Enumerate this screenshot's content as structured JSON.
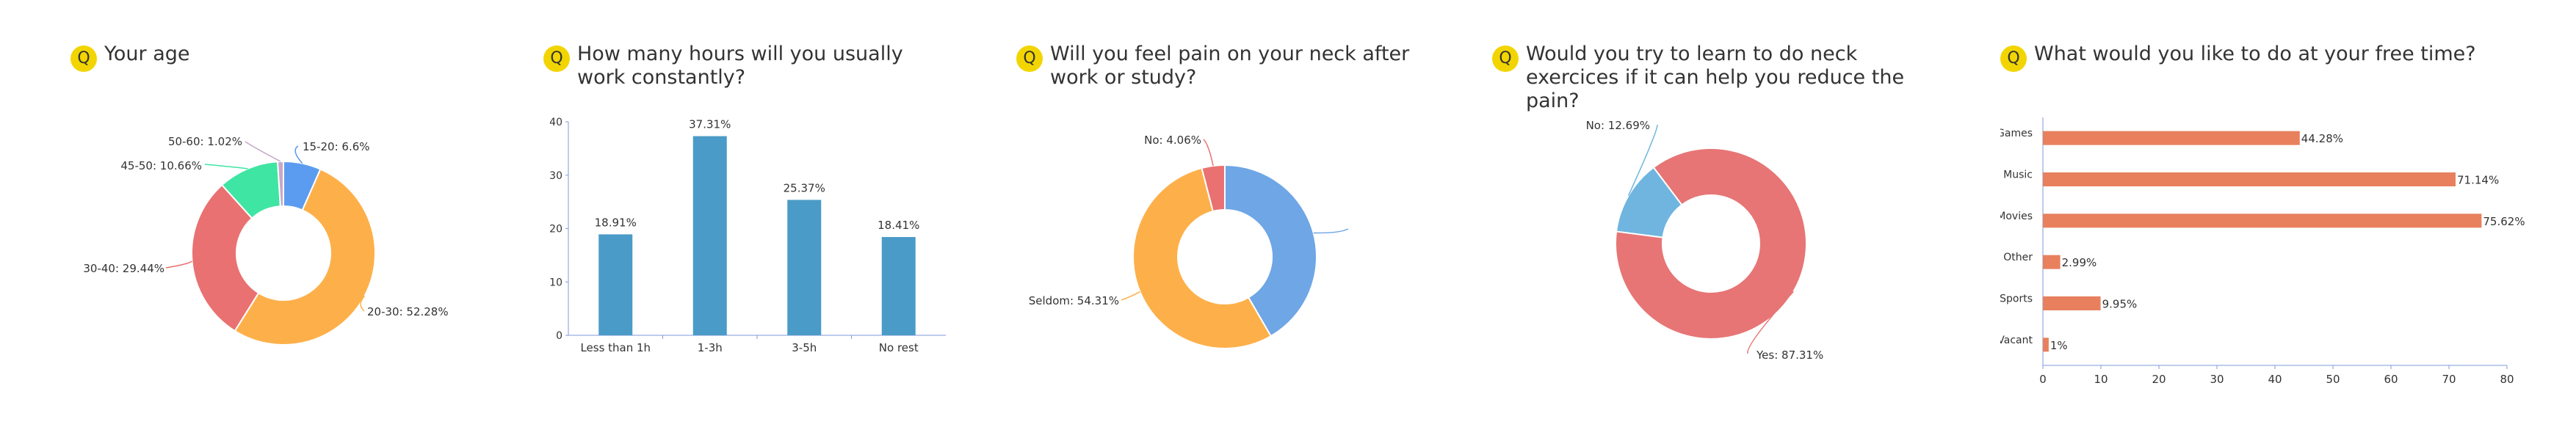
{
  "icon_letter": "Q",
  "colors": {
    "icon": "#f2d500",
    "bar_blue": "#4a9bc7",
    "bar_orange": "#e8805e",
    "axis": "#7f9ad8",
    "text": "#333333"
  },
  "chart_data": [
    {
      "type": "pie",
      "title": "Your age",
      "slices": [
        {
          "label": "15-20: 6.6%",
          "value": 6.6,
          "color": "#5b9cf0"
        },
        {
          "label": "20-30: 52.28%",
          "value": 52.28,
          "color": "#fdb04a"
        },
        {
          "label": "30-40: 29.44%",
          "value": 29.44,
          "color": "#ea7171"
        },
        {
          "label": "45-50: 10.66%",
          "value": 10.66,
          "color": "#3ee5a3"
        },
        {
          "label": "50-60: 1.02%",
          "value": 1.02,
          "color": "#c8a7c8"
        }
      ]
    },
    {
      "type": "bar",
      "title": "How many hours will you usually work constantly?",
      "categories": [
        "Less than 1h",
        "1-3h",
        "3-5h",
        "No rest"
      ],
      "values": [
        18.91,
        37.31,
        25.37,
        18.41
      ],
      "value_labels": [
        "18.91%",
        "37.31%",
        "25.37%",
        "18.41%"
      ],
      "yticks": [
        "0",
        "10",
        "20",
        "30",
        "40"
      ],
      "ylim": [
        0,
        40
      ]
    },
    {
      "type": "pie",
      "title": "Will you feel pain on your neck after work or study?",
      "slices": [
        {
          "label": "",
          "value": 41.63,
          "color": "#6ea6e6"
        },
        {
          "label": "Seldom: 54.31%",
          "value": 54.31,
          "color": "#fdb04a"
        },
        {
          "label": "No: 4.06%",
          "value": 4.06,
          "color": "#ea7171"
        }
      ]
    },
    {
      "type": "pie",
      "title": "Would you try to learn to do neck exercices if it can help you reduce the pain?",
      "slices": [
        {
          "label": "Yes: 87.31%",
          "value": 87.31,
          "color": "#e77575"
        },
        {
          "label": "No: 12.69%",
          "value": 12.69,
          "color": "#6fb5df"
        }
      ]
    },
    {
      "type": "bar",
      "orientation": "horizontal",
      "title": "What would you like to do at your free time?",
      "categories": [
        "Games",
        "Music",
        "Books / Movies",
        "Other",
        "Sports",
        "Vacant"
      ],
      "values": [
        44.28,
        71.14,
        75.62,
        2.99,
        9.95,
        1
      ],
      "value_labels": [
        "44.28%",
        "71.14%",
        "75.62%",
        "2.99%",
        "9.95%",
        "1%"
      ],
      "xticks": [
        "0",
        "10",
        "20",
        "30",
        "40",
        "50",
        "60",
        "70",
        "80"
      ],
      "xlim": [
        0,
        80
      ]
    }
  ]
}
